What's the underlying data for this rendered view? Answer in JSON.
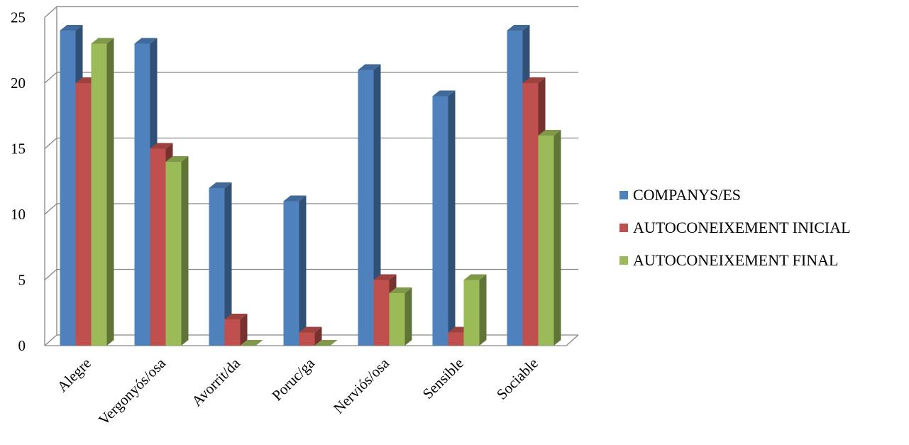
{
  "chart_data": {
    "type": "bar",
    "title": "",
    "xlabel": "",
    "ylabel": "",
    "ylim": [
      0,
      25
    ],
    "yticks": [
      0,
      5,
      10,
      15,
      20,
      25
    ],
    "grid": true,
    "legend_position": "right",
    "categories": [
      "Alegre",
      "Vergonyós/osa",
      "Avorrit/da",
      "Poruc/ga",
      "Nerviós/osa",
      "Sensible",
      "Sociable"
    ],
    "series": [
      {
        "name": "COMPANYS/ES",
        "color": "#4F81BD",
        "values": [
          24,
          23,
          12,
          11,
          21,
          19,
          24
        ]
      },
      {
        "name": "AUTOCONEIXEMENT INICIAL",
        "color": "#C0504D",
        "values": [
          20,
          15,
          2,
          1,
          5,
          1,
          20
        ]
      },
      {
        "name": "AUTOCONEIXEMENT FINAL",
        "color": "#9BBB59",
        "values": [
          23,
          14,
          0,
          0,
          4,
          5,
          16
        ]
      }
    ]
  }
}
